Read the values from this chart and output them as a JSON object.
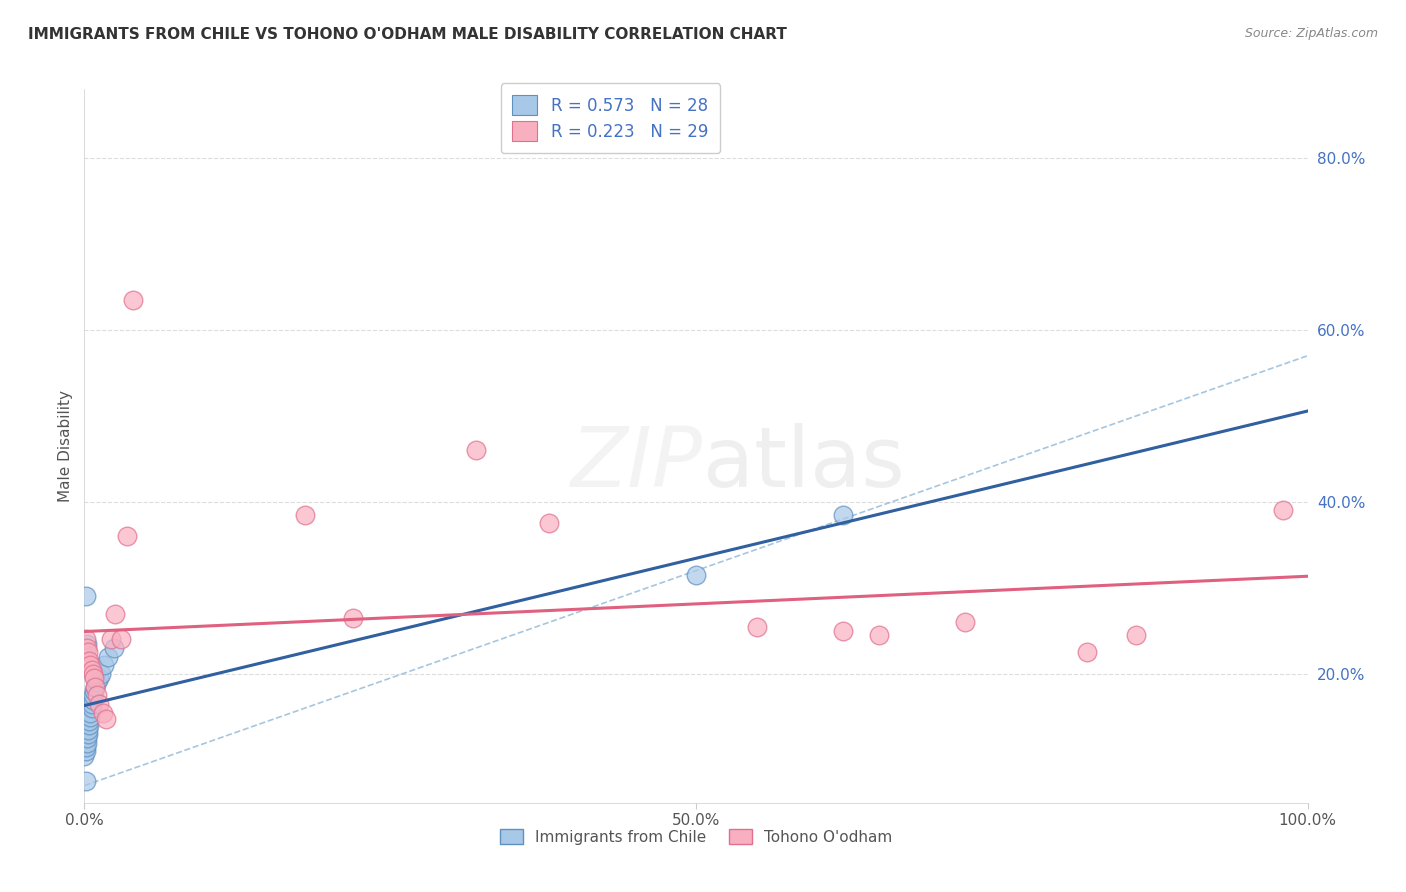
{
  "title": "IMMIGRANTS FROM CHILE VS TOHONO O'ODHAM MALE DISABILITY CORRELATION CHART",
  "source": "Source: ZipAtlas.com",
  "ylabel": "Male Disability",
  "legend_label1": "Immigrants from Chile",
  "legend_label2": "Tohono O'odham",
  "r1": 0.573,
  "n1": 28,
  "r2": 0.223,
  "n2": 29,
  "color_blue_fill": "#a8c8e8",
  "color_blue_edge": "#6090c0",
  "color_blue_line": "#3060a0",
  "color_pink_fill": "#f8b0c0",
  "color_pink_edge": "#e07090",
  "color_pink_line": "#e06080",
  "color_dashed": "#90b8d8",
  "blue_x": [
    0.0,
    0.001,
    0.001,
    0.002,
    0.002,
    0.003,
    0.003,
    0.004,
    0.004,
    0.005,
    0.005,
    0.006,
    0.006,
    0.007,
    0.007,
    0.008,
    0.009,
    0.01,
    0.012,
    0.014,
    0.016,
    0.019,
    0.024,
    0.001,
    0.001,
    0.002,
    0.5,
    0.62
  ],
  "blue_y": [
    0.105,
    0.11,
    0.115,
    0.12,
    0.125,
    0.13,
    0.135,
    0.14,
    0.145,
    0.15,
    0.155,
    0.16,
    0.165,
    0.17,
    0.175,
    0.18,
    0.185,
    0.19,
    0.195,
    0.2,
    0.21,
    0.22,
    0.23,
    0.075,
    0.29,
    0.235,
    0.315,
    0.385
  ],
  "pink_x": [
    0.001,
    0.002,
    0.003,
    0.004,
    0.005,
    0.006,
    0.007,
    0.008,
    0.009,
    0.01,
    0.012,
    0.015,
    0.018,
    0.022,
    0.025,
    0.03,
    0.035,
    0.04,
    0.55,
    0.62,
    0.65,
    0.72,
    0.82,
    0.86,
    0.18,
    0.22,
    0.32,
    0.38,
    0.98
  ],
  "pink_y": [
    0.24,
    0.23,
    0.225,
    0.215,
    0.21,
    0.205,
    0.2,
    0.195,
    0.185,
    0.175,
    0.165,
    0.155,
    0.148,
    0.24,
    0.27,
    0.24,
    0.36,
    0.635,
    0.255,
    0.25,
    0.245,
    0.26,
    0.225,
    0.245,
    0.385,
    0.265,
    0.46,
    0.375,
    0.39
  ],
  "xlim": [
    0.0,
    1.0
  ],
  "ylim": [
    0.05,
    0.88
  ],
  "right_yticks": [
    0.2,
    0.4,
    0.6,
    0.8
  ],
  "right_yticklabels": [
    "20.0%",
    "40.0%",
    "60.0%",
    "80.0%"
  ],
  "xtick_positions": [
    0.0,
    0.5,
    1.0
  ],
  "xtick_labels": [
    "0.0%",
    "50.0%",
    "100.0%"
  ],
  "background_color": "#ffffff",
  "grid_color": "#dddddd"
}
